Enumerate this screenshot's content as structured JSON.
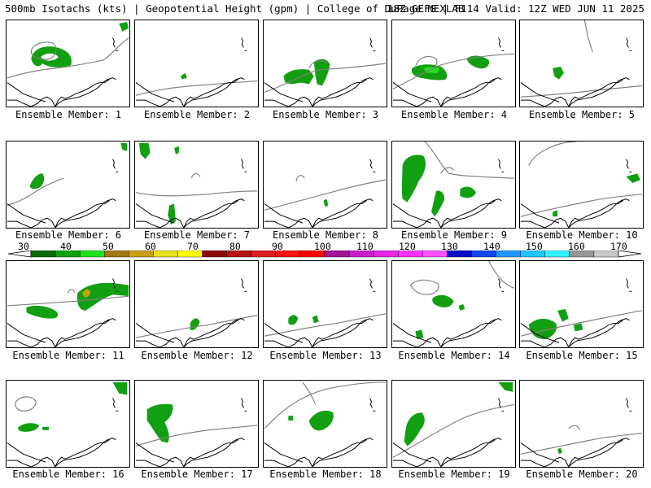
{
  "header": {
    "left_text": "500mb Isotachs (kts) | Geopotential Height (gpm) | College of DuPage NEXLAB",
    "right_text": "18Z GEFS | F114 Valid: 12Z WED JUN 11 2025"
  },
  "legend": {
    "labels": [
      "30",
      "40",
      "50",
      "60",
      "70",
      "80",
      "90",
      "100",
      "110",
      "120",
      "130",
      "140",
      "150",
      "160",
      "170"
    ],
    "colors": [
      "#0a6b0a",
      "#12a012",
      "#1ee01e",
      "#a07814",
      "#c8a014",
      "#e8e020",
      "#ffff00",
      "#8c0a0a",
      "#b41414",
      "#dc1e1e",
      "#ff1414",
      "#ff0000",
      "#a01496",
      "#c81ec8",
      "#e628e6",
      "#ff32ff",
      "#ff50ff",
      "#0a0ac8",
      "#1446f0",
      "#1e96ff",
      "#1ec8ff",
      "#32f0ff",
      "#969696",
      "#c8c8c8"
    ]
  },
  "members": [
    {
      "label": "Ensemble Member: 1"
    },
    {
      "label": "Ensemble Member: 2"
    },
    {
      "label": "Ensemble Member: 3"
    },
    {
      "label": "Ensemble Member: 4"
    },
    {
      "label": "Ensemble Member: 5"
    },
    {
      "label": "Ensemble Member: 6"
    },
    {
      "label": "Ensemble Member: 7"
    },
    {
      "label": "Ensemble Member: 8"
    },
    {
      "label": "Ensemble Member: 9"
    },
    {
      "label": "Ensemble Member: 10"
    },
    {
      "label": "Ensemble Member: 11"
    },
    {
      "label": "Ensemble Member: 12"
    },
    {
      "label": "Ensemble Member: 13"
    },
    {
      "label": "Ensemble Member: 14"
    },
    {
      "label": "Ensemble Member: 15"
    },
    {
      "label": "Ensemble Member: 16"
    },
    {
      "label": "Ensemble Member: 17"
    },
    {
      "label": "Ensemble Member: 18"
    },
    {
      "label": "Ensemble Member: 19"
    },
    {
      "label": "Ensemble Member: 20"
    }
  ]
}
